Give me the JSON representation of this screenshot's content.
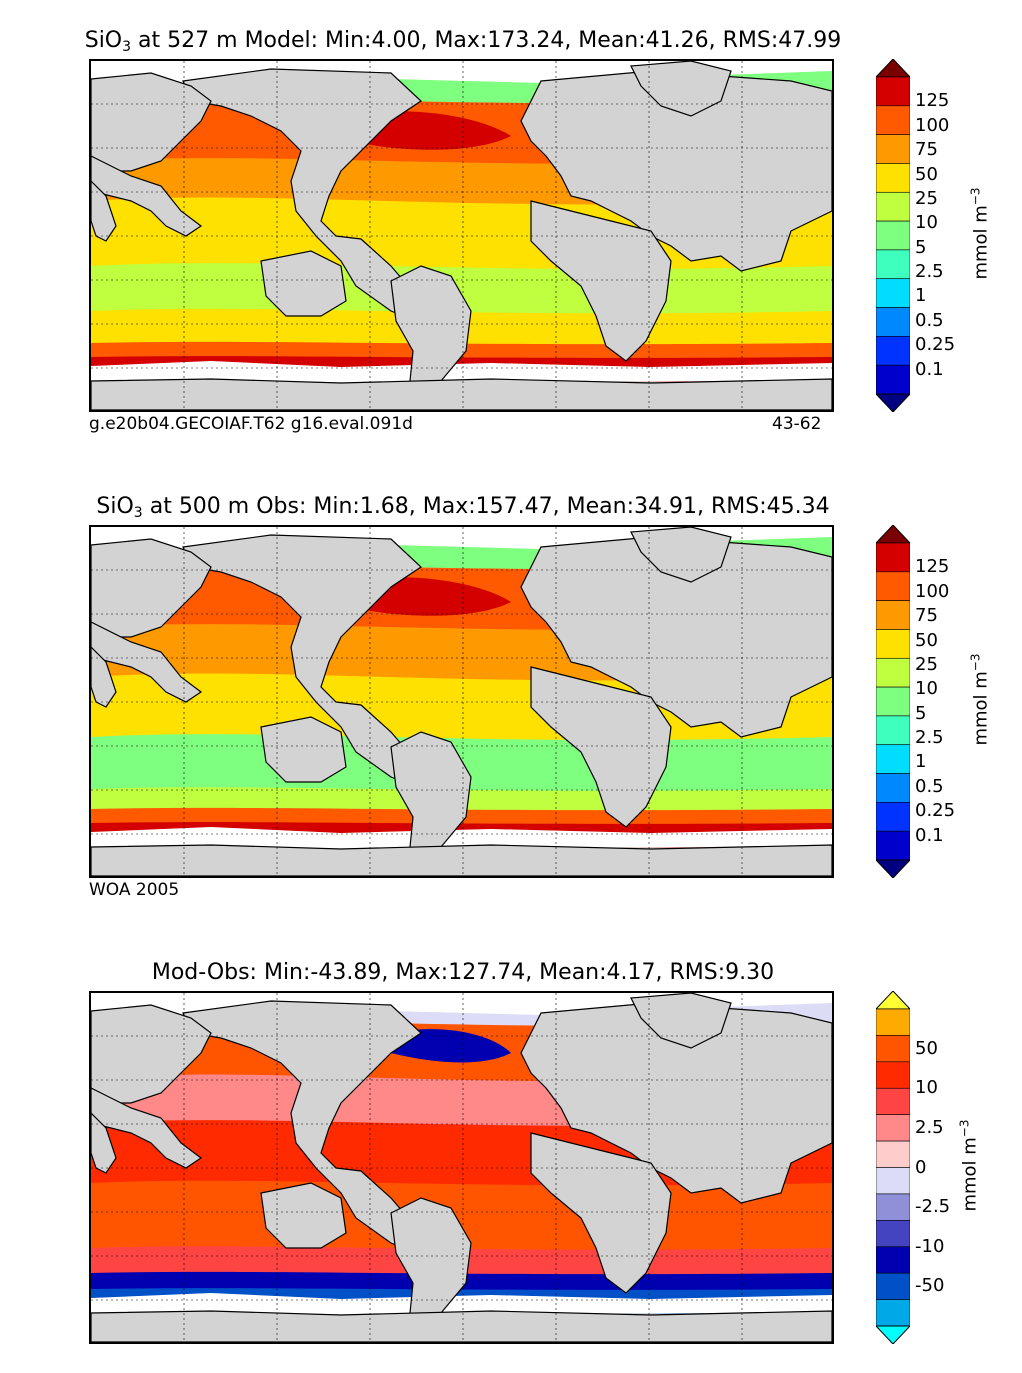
{
  "panels": [
    {
      "title_prefix": "SiO",
      "title_sub": "3",
      "title_rest": " at 527 m Model: Min:4.00, Max:173.24, Mean:41.26, RMS:47.99",
      "caption_left": "g.e20b04.GECOIAF.T62 g16.eval.091d",
      "caption_right": "43-62",
      "colorbar": {
        "ticks": [
          "125",
          "100",
          "75",
          "50",
          "25",
          "10",
          "5",
          "2.5",
          "1",
          "0.5",
          "0.25",
          "0.1"
        ],
        "colors": [
          "#7a0000",
          "#d40000",
          "#ff5a00",
          "#ff9900",
          "#ffe100",
          "#bfff3f",
          "#7fff7f",
          "#3fffbf",
          "#00ddff",
          "#0088ff",
          "#0033ff",
          "#0000cc",
          "#000080"
        ],
        "units": "mmol m",
        "units_sup": "−3"
      }
    },
    {
      "title_prefix": "SiO",
      "title_sub": "3",
      "title_rest": " at 500 m Obs: Min:1.68, Max:157.47, Mean:34.91, RMS:45.34",
      "caption_left": "WOA 2005",
      "caption_right": "",
      "colorbar": {
        "ticks": [
          "125",
          "100",
          "75",
          "50",
          "25",
          "10",
          "5",
          "2.5",
          "1",
          "0.5",
          "0.25",
          "0.1"
        ],
        "colors": [
          "#7a0000",
          "#d40000",
          "#ff5a00",
          "#ff9900",
          "#ffe100",
          "#bfff3f",
          "#7fff7f",
          "#3fffbf",
          "#00ddff",
          "#0088ff",
          "#0033ff",
          "#0000cc",
          "#000080"
        ],
        "units": "mmol m",
        "units_sup": "−3"
      }
    },
    {
      "title_prefix": "",
      "title_sub": "",
      "title_rest": "Mod-Obs: Min:-43.89, Max:127.74, Mean:4.17, RMS:9.30",
      "caption_left": "",
      "caption_right": "",
      "colorbar": {
        "ticks": [
          "50",
          "10",
          "2.5",
          "0",
          "-2.5",
          "-10",
          "-50"
        ],
        "colors": [
          "#ffff33",
          "#ffaa00",
          "#ff5500",
          "#ff2a00",
          "#ff4444",
          "#ff8888",
          "#ffcccc",
          "#dcdcf6",
          "#9090d8",
          "#4444c0",
          "#0000b0",
          "#0050c8",
          "#00a8e8",
          "#00ffff"
        ],
        "units": "mmol m",
        "units_sup": "−3"
      }
    }
  ],
  "colors": {
    "land": "#d3d3d3",
    "ice": "#ffffff"
  }
}
